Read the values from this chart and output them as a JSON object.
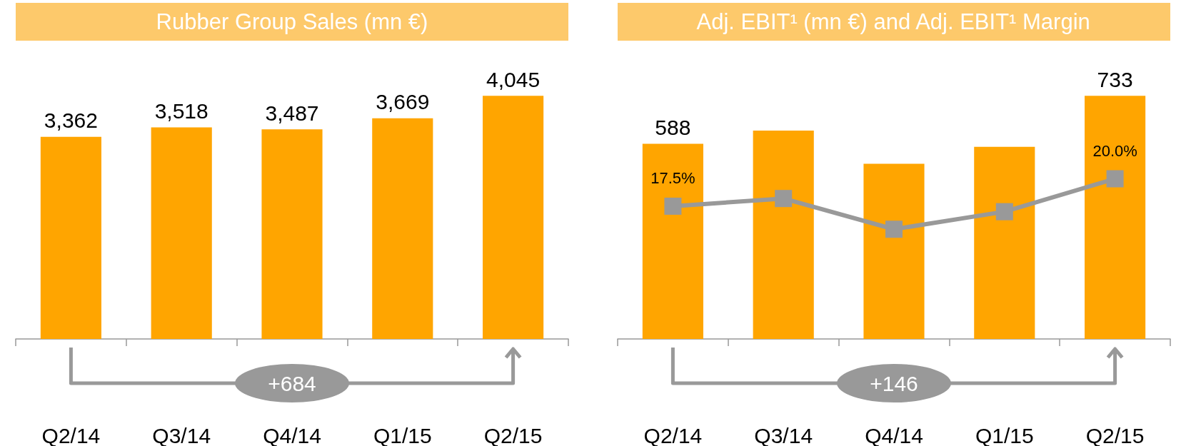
{
  "chart_data": [
    {
      "type": "bar",
      "title": "Rubber Group Sales (mn €)",
      "categories": [
        "Q2/14",
        "Q3/14",
        "Q4/14",
        "Q1/15",
        "Q2/15"
      ],
      "values": [
        3362,
        3518,
        3487,
        3669,
        4045
      ],
      "color": "#ffa500",
      "value_labels": [
        "3,362",
        "3,518",
        "3,487",
        "3,669",
        "4,045"
      ],
      "annotations": [
        "+684"
      ]
    },
    {
      "type": "bar",
      "title": "Adj. EBIT¹ (mn €) and Adj. EBIT¹ Margin",
      "categories": [
        "Q2/14",
        "Q3/14",
        "Q4/14",
        "Q1/15",
        "Q2/15"
      ],
      "series": [
        {
          "type": "bar",
          "color": "#ffa500",
          "values": [
            588,
            628,
            528,
            579,
            733
          ],
          "value_labels": [
            "588",
            null,
            null,
            null,
            "733"
          ]
        },
        {
          "type": "line",
          "axis": "y2",
          "color": "#999999",
          "marker": "square",
          "values": [
            17.5,
            18.2,
            15.4,
            17.0,
            20.0
          ],
          "value_labels": [
            "17.5%",
            null,
            null,
            null,
            "20.0%"
          ]
        }
      ],
      "annotations": [
        "+146"
      ]
    }
  ]
}
